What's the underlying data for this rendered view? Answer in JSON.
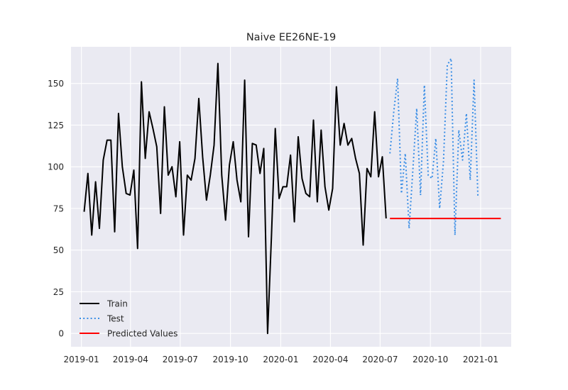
{
  "chart_data": {
    "type": "line",
    "title": "Naive EE26NE-19",
    "xlabel": "",
    "ylabel": "",
    "grid": true,
    "legend_position": "bottom-left",
    "x_tick_labels": [
      "2019-01",
      "2019-04",
      "2019-07",
      "2019-10",
      "2020-01",
      "2020-04",
      "2020-07",
      "2020-10",
      "2021-01"
    ],
    "y_ticks": [
      0,
      25,
      50,
      75,
      100,
      125,
      150
    ],
    "ylim": [
      -8,
      172
    ],
    "xlim": [
      "2018-12-13",
      "2021-02-26"
    ],
    "series": [
      {
        "name": "Train",
        "color": "#000000",
        "style": "solid",
        "x": [
          "2019-01-06",
          "2019-01-13",
          "2019-01-20",
          "2019-01-27",
          "2019-02-03",
          "2019-02-10",
          "2019-02-17",
          "2019-02-24",
          "2019-03-03",
          "2019-03-10",
          "2019-03-17",
          "2019-03-24",
          "2019-03-31",
          "2019-04-07",
          "2019-04-14",
          "2019-04-21",
          "2019-04-28",
          "2019-05-05",
          "2019-05-12",
          "2019-05-19",
          "2019-05-26",
          "2019-06-02",
          "2019-06-09",
          "2019-06-16",
          "2019-06-23",
          "2019-06-30",
          "2019-07-07",
          "2019-07-14",
          "2019-07-21",
          "2019-07-28",
          "2019-08-04",
          "2019-08-11",
          "2019-08-18",
          "2019-08-25",
          "2019-09-01",
          "2019-09-08",
          "2019-09-15",
          "2019-09-22",
          "2019-09-29",
          "2019-10-06",
          "2019-10-13",
          "2019-10-20",
          "2019-10-27",
          "2019-11-03",
          "2019-11-10",
          "2019-11-17",
          "2019-11-24",
          "2019-12-01",
          "2019-12-08",
          "2019-12-15",
          "2019-12-22",
          "2019-12-29",
          "2020-01-05",
          "2020-01-12",
          "2020-01-19",
          "2020-01-26",
          "2020-02-02",
          "2020-02-09",
          "2020-02-16",
          "2020-02-23",
          "2020-03-01",
          "2020-03-08",
          "2020-03-15",
          "2020-03-22",
          "2020-03-29",
          "2020-04-05",
          "2020-04-12",
          "2020-04-19",
          "2020-04-26",
          "2020-05-03",
          "2020-05-10",
          "2020-05-17",
          "2020-05-24",
          "2020-05-31",
          "2020-06-07",
          "2020-06-14",
          "2020-06-21",
          "2020-06-28",
          "2020-07-05",
          "2020-07-12"
        ],
        "values": [
          73,
          96,
          59,
          91,
          63,
          104,
          116,
          116,
          61,
          132,
          100,
          84,
          83,
          98,
          51,
          151,
          105,
          133,
          123,
          112,
          72,
          136,
          95,
          100,
          82,
          115,
          59,
          95,
          92,
          105,
          141,
          106,
          80,
          95,
          113,
          162,
          95,
          68,
          101,
          115,
          92,
          79,
          152,
          58,
          114,
          113,
          96,
          111,
          0,
          58,
          123,
          81,
          88,
          88,
          107,
          67,
          118,
          93,
          84,
          82,
          128,
          79,
          122,
          88,
          74,
          87,
          148,
          113,
          126,
          113,
          117,
          105,
          96,
          53,
          99,
          94,
          133,
          94,
          106,
          69
        ]
      },
      {
        "name": "Test",
        "color": "#3a8ee6",
        "style": "dotted",
        "x": [
          "2020-07-19",
          "2020-07-26",
          "2020-08-02",
          "2020-08-09",
          "2020-08-16",
          "2020-08-23",
          "2020-08-30",
          "2020-09-06",
          "2020-09-13",
          "2020-09-20",
          "2020-09-27",
          "2020-10-04",
          "2020-10-11",
          "2020-10-18",
          "2020-10-25",
          "2020-11-01",
          "2020-11-08",
          "2020-11-15",
          "2020-11-22",
          "2020-11-29",
          "2020-12-06",
          "2020-12-13",
          "2020-12-20",
          "2020-12-27"
        ],
        "values": [
          108,
          133,
          153,
          84,
          108,
          63,
          98,
          135,
          83,
          149,
          95,
          93,
          117,
          75,
          103,
          161,
          165,
          59,
          122,
          104,
          132,
          92,
          152,
          82
        ]
      },
      {
        "name": "Predicted Values",
        "color": "#ff0000",
        "style": "solid",
        "x": [
          "2020-07-19",
          "2021-02-07"
        ],
        "values": [
          69,
          69
        ]
      }
    ]
  }
}
